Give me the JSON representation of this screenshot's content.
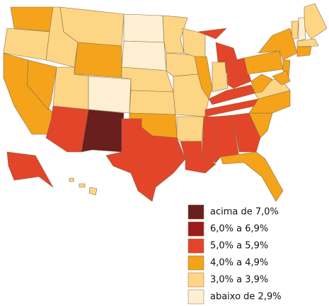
{
  "legend": {
    "items": [
      {
        "label": "acima de 7,0%",
        "color": "#6b1e1e"
      },
      {
        "label": "6,0% a 6,9%",
        "color": "#9c1c1c"
      },
      {
        "label": "5,0% a 5,9%",
        "color": "#e2452a"
      },
      {
        "label": "4,0% a 4,9%",
        "color": "#f4a31b"
      },
      {
        "label": "3,0% a 3,9%",
        "color": "#fdd685"
      },
      {
        "label": "abaixo de 2,9%",
        "color": "#fdefd2"
      }
    ]
  }
}
